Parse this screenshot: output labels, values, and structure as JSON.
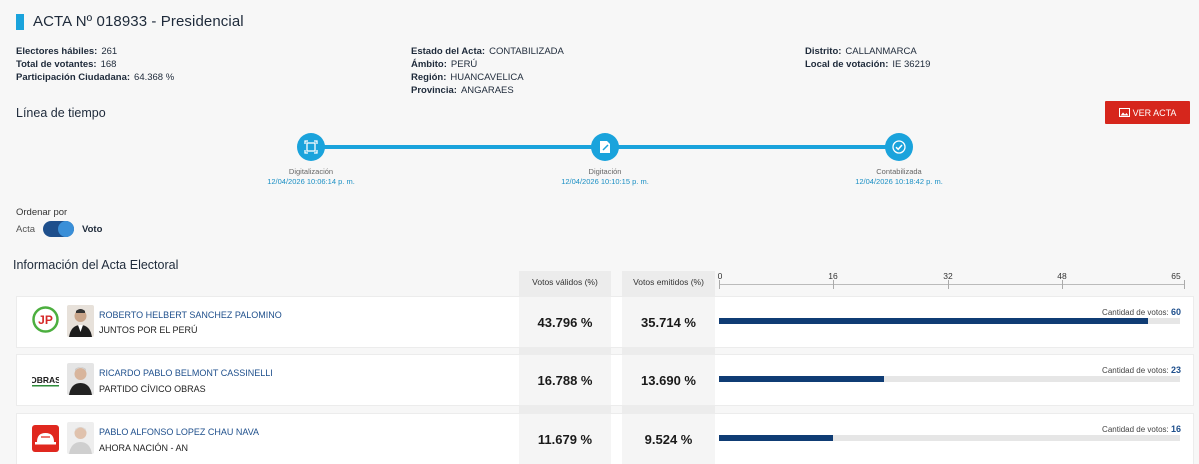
{
  "header": {
    "title": "ACTA Nº 018933 - Presidencial"
  },
  "info": {
    "col1": [
      {
        "key": "Electores hábiles:",
        "value": "261"
      },
      {
        "key": "Total de votantes:",
        "value": "168"
      },
      {
        "key": "Participación Ciudadana:",
        "value": "64.368 %"
      }
    ],
    "col2": [
      {
        "key": "Estado del Acta:",
        "value": "CONTABILIZADA"
      },
      {
        "key": "Ámbito:",
        "value": "PERÚ"
      },
      {
        "key": "Región:",
        "value": "HUANCAVELICA"
      },
      {
        "key": "Provincia:",
        "value": "ANGARAES"
      }
    ],
    "col3": [
      {
        "key": "Distrito:",
        "value": "CALLANMARCA"
      },
      {
        "key": "Local de votación:",
        "value": "IE 36219"
      }
    ]
  },
  "timeline": {
    "title": "Línea de tiempo",
    "ver_acta_label": "VER ACTA",
    "steps": [
      {
        "label": "Digitalización",
        "date": "12/04/2026 10:06:14 p. m.",
        "icon": "scan-document-icon"
      },
      {
        "label": "Digitación",
        "date": "12/04/2026 10:10:15 p. m.",
        "icon": "edit-document-icon"
      },
      {
        "label": "Contabilizada",
        "date": "12/04/2026 10:18:42 p. m.",
        "icon": "check-circle-icon"
      }
    ]
  },
  "sort": {
    "label": "Ordenar por",
    "option_left": "Acta",
    "option_right": "Voto",
    "selected": "Voto"
  },
  "results": {
    "title": "Información del Acta Electoral",
    "col_valid": "Votos válidos (%)",
    "col_emitted": "Votos emitidos (%)",
    "votes_prefix": "Cantidad de votos:",
    "colors": {
      "bar": "#0f3c74",
      "accent": "#1aa3dc",
      "button": "#d6261c"
    }
  },
  "chart_data": {
    "type": "bar",
    "orientation": "horizontal",
    "xlim": [
      0,
      65
    ],
    "ticks": [
      0,
      16,
      32,
      48,
      65
    ],
    "categories": [
      "ROBERTO HELBERT SANCHEZ PALOMINO",
      "RICARDO PABLO BELMONT CASSINELLI",
      "PABLO ALFONSO LOPEZ CHAU NAVA"
    ],
    "rows": [
      {
        "candidate": "ROBERTO HELBERT SANCHEZ PALOMINO",
        "party": "JUNTOS POR EL PERÚ",
        "valid_pct": "43.796 %",
        "emitted_pct": "35.714 %",
        "votes": 60,
        "logo": "jp-logo"
      },
      {
        "candidate": "RICARDO PABLO BELMONT CASSINELLI",
        "party": "PARTIDO CÍVICO OBRAS",
        "valid_pct": "16.788 %",
        "emitted_pct": "13.690 %",
        "votes": 23,
        "logo": "obras-logo"
      },
      {
        "candidate": "PABLO ALFONSO LOPEZ CHAU NAVA",
        "party": "AHORA NACIÓN - AN",
        "valid_pct": "11.679 %",
        "emitted_pct": "9.524 %",
        "votes": 16,
        "logo": "ahora-nacion-logo"
      }
    ]
  }
}
